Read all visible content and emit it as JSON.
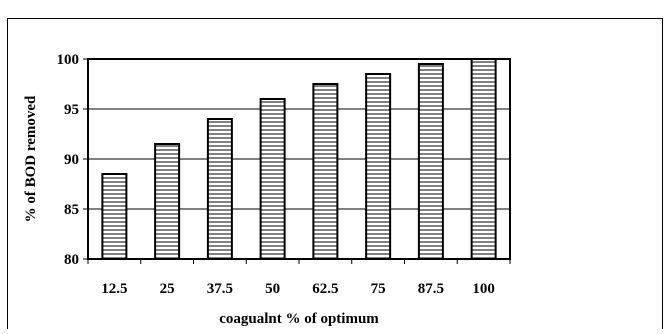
{
  "chart_data": {
    "type": "bar",
    "title": "",
    "xlabel": "coagualnt % of optimum",
    "ylabel": "% of BOD removed",
    "categories": [
      "12.5",
      "25",
      "37.5",
      "50",
      "62.5",
      "75",
      "87.5",
      "100"
    ],
    "values": [
      88.5,
      91.5,
      94,
      96,
      97.5,
      98.5,
      99.5,
      100
    ],
    "ylim": [
      80,
      100
    ],
    "yticks": [
      "80",
      "85",
      "90",
      "95",
      "100"
    ],
    "grid": true,
    "legend": "none",
    "bar_fill": "horizontal-stripes",
    "colors": {
      "bar_stroke": "#000000",
      "stripe": "#000000",
      "bar_background": "#ffffff",
      "grid": "#000000"
    }
  }
}
